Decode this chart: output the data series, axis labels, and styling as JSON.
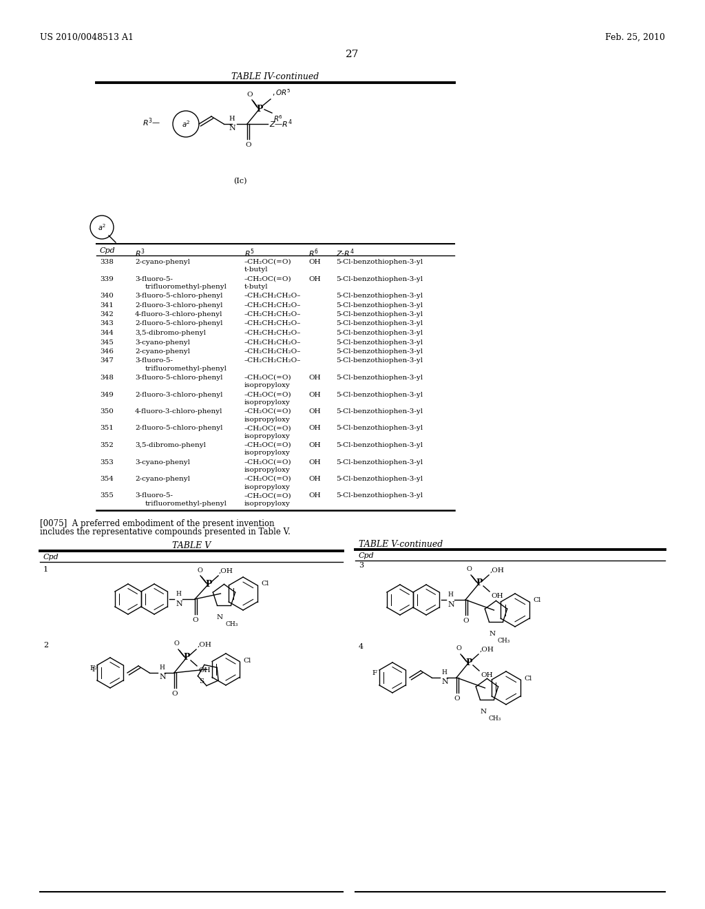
{
  "page_header_left": "US 2010/0048513 A1",
  "page_header_right": "Feb. 25, 2010",
  "page_number": "27",
  "table_iv_title": "TABLE IV-continued",
  "table_iv_rows": [
    [
      "338",
      "2-cyano-phenyl",
      "–CH₂OC(=O)\nt-butyl",
      "OH",
      "5-Cl-benzothiophen-3-yl"
    ],
    [
      "339",
      "3-fluoro-5-\ntrifluoromethyl-phenyl",
      "–CH₂OC(=O)\nt-butyl",
      "OH",
      "5-Cl-benzothiophen-3-yl"
    ],
    [
      "340",
      "3-fluoro-5-chloro-phenyl",
      "–CH₂CH₂CH₂O–",
      "",
      "5-Cl-benzothiophen-3-yl"
    ],
    [
      "341",
      "2-fluoro-3-chloro-phenyl",
      "–CH₂CH₂CH₂O–",
      "",
      "5-Cl-benzothiophen-3-yl"
    ],
    [
      "342",
      "4-fluoro-3-chloro-phenyl",
      "–CH₂CH₂CH₂O–",
      "",
      "5-Cl-benzothiophen-3-yl"
    ],
    [
      "343",
      "2-fluoro-5-chloro-phenyl",
      "–CH₂CH₂CH₂O–",
      "",
      "5-Cl-benzothiophen-3-yl"
    ],
    [
      "344",
      "3,5-dibromo-phenyl",
      "–CH₂CH₂CH₂O–",
      "",
      "5-Cl-benzothiophen-3-yl"
    ],
    [
      "345",
      "3-cyano-phenyl",
      "–CH₂CH₂CH₂O–",
      "",
      "5-Cl-benzothiophen-3-yl"
    ],
    [
      "346",
      "2-cyano-phenyl",
      "–CH₂CH₂CH₂O–",
      "",
      "5-Cl-benzothiophen-3-yl"
    ],
    [
      "347",
      "3-fluoro-5-\ntrifluoromethyl-phenyl",
      "–CH₂CH₂CH₂O–",
      "",
      "5-Cl-benzothiophen-3-yl"
    ],
    [
      "348",
      "3-fluoro-5-chloro-phenyl",
      "–CH₂OC(=O)\nisopropyloxy",
      "OH",
      "5-Cl-benzothiophen-3-yl"
    ],
    [
      "349",
      "2-fluoro-3-chloro-phenyl",
      "–CH₂OC(=O)\nisopropyloxy",
      "OH",
      "5-Cl-benzothiophen-3-yl"
    ],
    [
      "350",
      "4-fluoro-3-chloro-phenyl",
      "–CH₂OC(=O)\nisopropyloxy",
      "OH",
      "5-Cl-benzothiophen-3-yl"
    ],
    [
      "351",
      "2-fluoro-5-chloro-phenyl",
      "–CH₂OC(=O)\nisopropyloxy",
      "OH",
      "5-Cl-benzothiophen-3-yl"
    ],
    [
      "352",
      "3,5-dibromo-phenyl",
      "–CH₂OC(=O)\nisopropyloxy",
      "OH",
      "5-Cl-benzothiophen-3-yl"
    ],
    [
      "353",
      "3-cyano-phenyl",
      "–CH₂OC(=O)\nisopropyloxy",
      "OH",
      "5-Cl-benzothiophen-3-yl"
    ],
    [
      "354",
      "2-cyano-phenyl",
      "–CH₂OC(=O)\nisopropyloxy",
      "OH",
      "5-Cl-benzothiophen-3-yl"
    ],
    [
      "355",
      "3-fluoro-5-\ntrifluoromethyl-phenyl",
      "–CH₂OC(=O)\nisopropyloxy",
      "OH",
      "5-Cl-benzothiophen-3-yl"
    ]
  ],
  "paragraph_0075": "[0075]  A preferred embodiment of the present invention\nincludes the representative compounds presented in Table V.",
  "table_v_title": "TABLE V",
  "table_v_continued_title": "TABLE V-continued",
  "background_color": "#ffffff"
}
